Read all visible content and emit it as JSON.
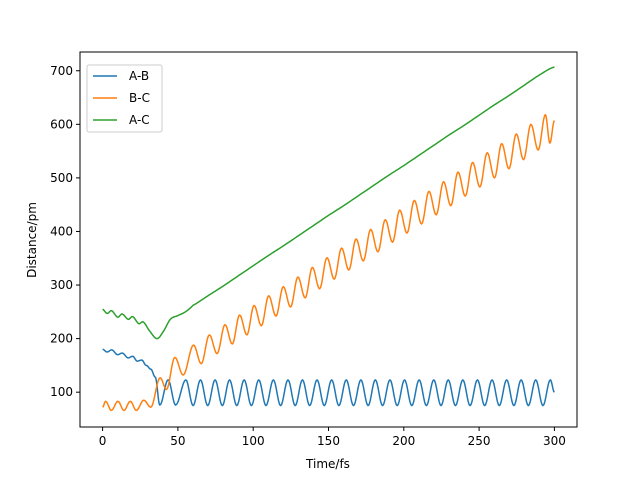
{
  "chart_data": {
    "type": "line",
    "title": "",
    "xlabel": "Time/fs",
    "ylabel": "Distance/pm",
    "xlim": [
      -15,
      315
    ],
    "ylim": [
      35,
      735
    ],
    "xticks": [
      0,
      50,
      100,
      150,
      200,
      250,
      300
    ],
    "yticks": [
      100,
      200,
      300,
      400,
      500,
      600,
      700
    ],
    "grid": false,
    "legend_position": "top-left",
    "series": [
      {
        "name": "A-B",
        "color": "#1f77b4",
        "points": [
          [
            0,
            180
          ],
          [
            3,
            175
          ],
          [
            6,
            179
          ],
          [
            10,
            170
          ],
          [
            13,
            173
          ],
          [
            17,
            164
          ],
          [
            20,
            167
          ],
          [
            23,
            158
          ],
          [
            26,
            160
          ],
          [
            29,
            150
          ],
          [
            32,
            143
          ],
          [
            35,
            128
          ],
          [
            38,
            76
          ],
          [
            43.5,
            123
          ],
          [
            48.5,
            76
          ],
          [
            55.3,
            123
          ],
          [
            60.1,
            75
          ],
          [
            65.0,
            123
          ],
          [
            69.8,
            75
          ],
          [
            74.7,
            123
          ],
          [
            79.5,
            75
          ],
          [
            84.3,
            123
          ],
          [
            89.1,
            75
          ],
          [
            94.0,
            123
          ],
          [
            98.8,
            75
          ],
          [
            103.7,
            123
          ],
          [
            108.5,
            75
          ],
          [
            113.4,
            123
          ],
          [
            118.2,
            75
          ],
          [
            123.1,
            123
          ],
          [
            127.9,
            75
          ],
          [
            132.7,
            123
          ],
          [
            137.5,
            75
          ],
          [
            142.4,
            123
          ],
          [
            147.2,
            75
          ],
          [
            152.1,
            123
          ],
          [
            156.9,
            75
          ],
          [
            161.8,
            123
          ],
          [
            166.6,
            75
          ],
          [
            171.5,
            123
          ],
          [
            176.3,
            75
          ],
          [
            181.1,
            123
          ],
          [
            185.9,
            75
          ],
          [
            190.8,
            123
          ],
          [
            195.6,
            75
          ],
          [
            200.5,
            123
          ],
          [
            205.3,
            75
          ],
          [
            210.2,
            123
          ],
          [
            215.0,
            75
          ],
          [
            219.9,
            123
          ],
          [
            224.7,
            75
          ],
          [
            229.5,
            123
          ],
          [
            234.3,
            75
          ],
          [
            239.2,
            123
          ],
          [
            244.0,
            75
          ],
          [
            248.9,
            123
          ],
          [
            253.7,
            75
          ],
          [
            258.6,
            123
          ],
          [
            263.4,
            75
          ],
          [
            268.3,
            123
          ],
          [
            273.1,
            75
          ],
          [
            277.9,
            123
          ],
          [
            282.7,
            75
          ],
          [
            287.6,
            123
          ],
          [
            292.4,
            75
          ],
          [
            297.3,
            123
          ],
          [
            300,
            100
          ]
        ]
      },
      {
        "name": "B-C",
        "color": "#ff7f0e",
        "points": [
          [
            0,
            72
          ],
          [
            2,
            83
          ],
          [
            5.8,
            66
          ],
          [
            10.2,
            83
          ],
          [
            14.2,
            66
          ],
          [
            18.4,
            83
          ],
          [
            22.4,
            66
          ],
          [
            27.3,
            85
          ],
          [
            32,
            72
          ],
          [
            38.2,
            127
          ],
          [
            42.4,
            105
          ],
          [
            48,
            165
          ],
          [
            53.5,
            132
          ],
          [
            60.4,
            188
          ],
          [
            65.5,
            153
          ],
          [
            70.9,
            207
          ],
          [
            76,
            172
          ],
          [
            81.3,
            226
          ],
          [
            86.1,
            190
          ],
          [
            91.0,
            244
          ],
          [
            95.8,
            207
          ],
          [
            100.6,
            262
          ],
          [
            105.4,
            224
          ],
          [
            110.3,
            280
          ],
          [
            115.1,
            242
          ],
          [
            120.0,
            297
          ],
          [
            124.8,
            259
          ],
          [
            129.7,
            315
          ],
          [
            134.5,
            276
          ],
          [
            139.3,
            333
          ],
          [
            144.1,
            293
          ],
          [
            149.0,
            351
          ],
          [
            153.8,
            311
          ],
          [
            158.7,
            369
          ],
          [
            163.5,
            328
          ],
          [
            168.3,
            386
          ],
          [
            173.1,
            345
          ],
          [
            178.0,
            404
          ],
          [
            182.8,
            362
          ],
          [
            187.7,
            422
          ],
          [
            192.5,
            380
          ],
          [
            197.3,
            440
          ],
          [
            202.1,
            397
          ],
          [
            207.0,
            458
          ],
          [
            211.8,
            414
          ],
          [
            216.7,
            475
          ],
          [
            221.5,
            431
          ],
          [
            226.4,
            493
          ],
          [
            231.2,
            448
          ],
          [
            236.0,
            511
          ],
          [
            240.8,
            466
          ],
          [
            245.7,
            529
          ],
          [
            250.5,
            483
          ],
          [
            255.4,
            547
          ],
          [
            260.2,
            500
          ],
          [
            265.0,
            564
          ],
          [
            269.8,
            517
          ],
          [
            274.7,
            582
          ],
          [
            279.5,
            534
          ],
          [
            284.4,
            600
          ],
          [
            289.2,
            552
          ],
          [
            294.0,
            618
          ],
          [
            297.0,
            565
          ],
          [
            300,
            607
          ]
        ]
      },
      {
        "name": "A-C",
        "color": "#2ca02c",
        "points": [
          [
            0,
            255
          ],
          [
            3,
            247
          ],
          [
            6,
            252
          ],
          [
            10,
            240
          ],
          [
            13,
            246
          ],
          [
            17,
            236
          ],
          [
            20,
            241
          ],
          [
            24,
            228
          ],
          [
            27,
            231
          ],
          [
            31,
            215
          ],
          [
            36,
            200
          ],
          [
            40,
            212
          ],
          [
            45,
            236
          ],
          [
            50,
            243
          ],
          [
            55,
            250
          ],
          [
            60,
            262
          ],
          [
            70,
            280
          ],
          [
            80,
            298
          ],
          [
            90,
            317
          ],
          [
            100,
            336
          ],
          [
            110,
            355
          ],
          [
            120,
            373
          ],
          [
            130,
            392
          ],
          [
            140,
            411
          ],
          [
            150,
            430
          ],
          [
            160,
            448
          ],
          [
            170,
            467
          ],
          [
            180,
            486
          ],
          [
            190,
            505
          ],
          [
            200,
            523
          ],
          [
            210,
            542
          ],
          [
            220,
            561
          ],
          [
            230,
            580
          ],
          [
            240,
            598
          ],
          [
            250,
            617
          ],
          [
            260,
            636
          ],
          [
            270,
            654
          ],
          [
            280,
            673
          ],
          [
            290,
            692
          ],
          [
            300,
            707
          ]
        ]
      }
    ]
  }
}
